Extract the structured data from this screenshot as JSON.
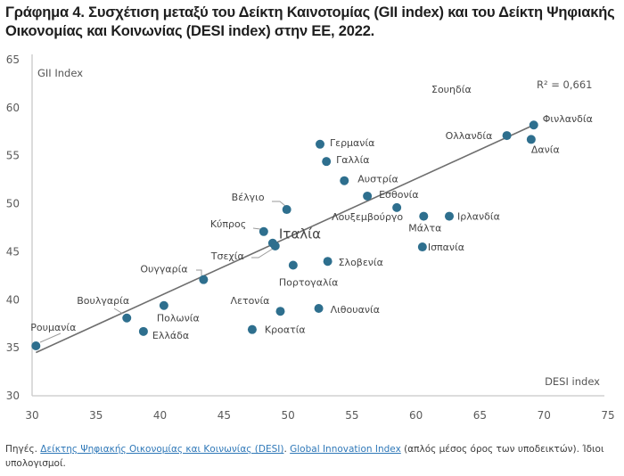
{
  "title": "Γράφημα 4. Συσχέτιση μεταξύ του Δείκτη Καινοτομίας (GII index) και του Δείκτη Ψηφιακής Οικονομίας και Κοινωνίας (DESI index) στην ΕΕ, 2022.",
  "chart_data": {
    "type": "scatter",
    "title": "Γράφημα 4. Συσχέτιση μεταξύ του Δείκτη Καινοτομίας (GII index) και του Δείκτη Ψηφιακής Οικονομίας και Κοινωνίας (DESI index) στην ΕΕ, 2022.",
    "xlabel": "DESI index",
    "ylabel": "GII Index",
    "xlim": [
      30,
      75
    ],
    "ylim": [
      30,
      65
    ],
    "xticks": [
      "30",
      "35",
      "40",
      "45",
      "50",
      "55",
      "60",
      "65",
      "70",
      "75"
    ],
    "yticks": [
      "30",
      "35",
      "40",
      "45",
      "50",
      "55",
      "60",
      "65"
    ],
    "grid": false,
    "marker_color": "#2e6f8e",
    "trendline": {
      "type": "linear",
      "x": [
        30.3,
        69.2
      ],
      "y": [
        34.5,
        58.2
      ],
      "color": "#6e6e6e"
    },
    "annotations": [
      {
        "text": "R² = 0,661",
        "position": "top-right"
      },
      {
        "text": "Σουηδία",
        "position": "top-right"
      }
    ],
    "points": [
      {
        "label": "Ρουμανία",
        "x": 30.3,
        "y": 35.2
      },
      {
        "label": "Βουλγαρία",
        "x": 37.4,
        "y": 38.1
      },
      {
        "label": "Ελλάδα",
        "x": 38.7,
        "y": 36.7
      },
      {
        "label": "Πολωνία",
        "x": 40.3,
        "y": 39.4
      },
      {
        "label": "Ουγγαρία",
        "x": 43.4,
        "y": 42.1
      },
      {
        "label": "Κροατία",
        "x": 47.2,
        "y": 36.9
      },
      {
        "label": "Κύπρος",
        "x": 48.1,
        "y": 47.1
      },
      {
        "label": "Ιταλία",
        "x": 48.8,
        "y": 45.9
      },
      {
        "label": "Τσεχία",
        "x": 49.0,
        "y": 45.6
      },
      {
        "label": "Λετονία",
        "x": 49.4,
        "y": 38.8
      },
      {
        "label": "Βέλγιο",
        "x": 49.9,
        "y": 49.4
      },
      {
        "label": "Πορτογαλία",
        "x": 50.4,
        "y": 43.6
      },
      {
        "label": "Λιθουανία",
        "x": 52.4,
        "y": 39.1
      },
      {
        "label": "Γερμανία",
        "x": 52.5,
        "y": 56.2
      },
      {
        "label": "Γαλλία",
        "x": 53.0,
        "y": 54.4
      },
      {
        "label": "Σλοβενία",
        "x": 53.1,
        "y": 44.0
      },
      {
        "label": "Αυστρία",
        "x": 54.4,
        "y": 52.4
      },
      {
        "label": "Εσθονία",
        "x": 56.2,
        "y": 50.8
      },
      {
        "label": "Λουξεμβούργο",
        "x": 58.5,
        "y": 49.6
      },
      {
        "label": "Ισπανία",
        "x": 60.5,
        "y": 45.5
      },
      {
        "label": "Μάλτα",
        "x": 60.6,
        "y": 48.7
      },
      {
        "label": "Ιρλανδία",
        "x": 62.6,
        "y": 48.7
      },
      {
        "label": "Ολλανδία",
        "x": 67.1,
        "y": 57.1
      },
      {
        "label": "Δανία",
        "x": 69.0,
        "y": 56.7
      },
      {
        "label": "Φινλανδία",
        "x": 69.2,
        "y": 58.2
      }
    ]
  },
  "footer": {
    "prefix": "Πηγές. ",
    "link1": "Δείκτης Ψηφιακής Οικονομίας και Κοινωνίας (DESI)",
    "sep": ". ",
    "link2": "Global Innovation Index",
    "suffix": " (απλός μέσος όρος των υποδεικτών). Ίδιοι υπολογισμοί."
  }
}
